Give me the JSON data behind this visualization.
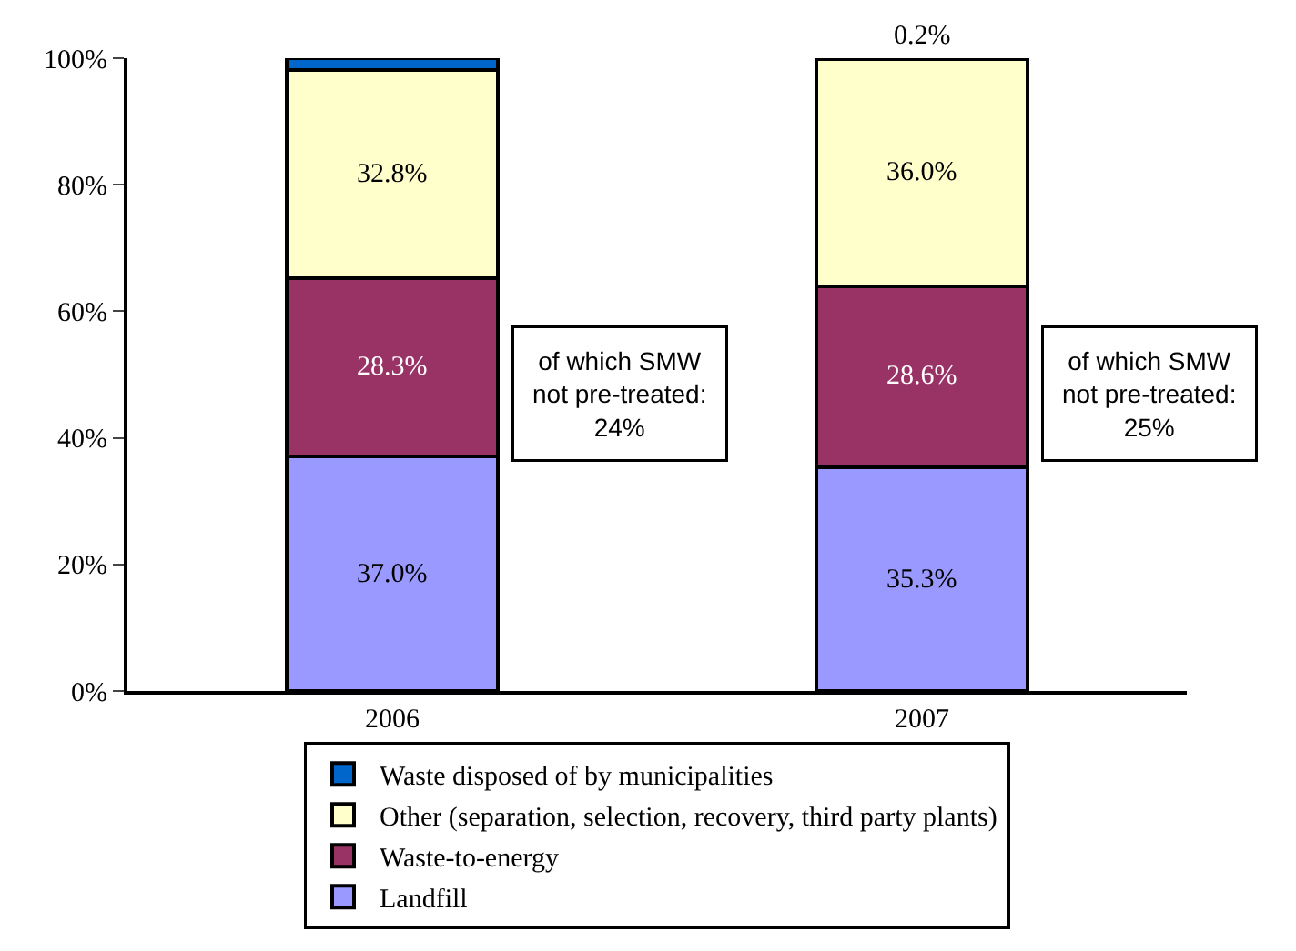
{
  "chart_data": {
    "type": "bar",
    "stacked": true,
    "categories": [
      "2006",
      "2007"
    ],
    "series": [
      {
        "name": "Landfill",
        "color": "#9999ff",
        "values": [
          37.0,
          35.3
        ],
        "value_labels": [
          "37.0%",
          "35.3%"
        ]
      },
      {
        "name": "Waste-to-energy",
        "color": "#993366",
        "values": [
          28.3,
          28.6
        ],
        "value_labels": [
          "28.3%",
          "28.6%"
        ]
      },
      {
        "name": "Other (separation, selection, recovery, third party plants)",
        "color": "#ffffcc",
        "values": [
          32.8,
          36.0
        ],
        "value_labels": [
          "32.8%",
          "36.0%"
        ]
      },
      {
        "name": "Waste disposed of by municipalities",
        "color": "#0066cc",
        "values": [
          1.9,
          0.2
        ],
        "value_labels": [
          null,
          "0.2%"
        ]
      }
    ],
    "ylim": [
      0,
      100
    ],
    "yticks": [
      {
        "value": 0,
        "label": "0%"
      },
      {
        "value": 20,
        "label": "20%"
      },
      {
        "value": 40,
        "label": "40%"
      },
      {
        "value": 60,
        "label": "60%"
      },
      {
        "value": 80,
        "label": "80%"
      },
      {
        "value": 100,
        "label": "100%"
      }
    ],
    "legend": "bottom",
    "annotations": [
      "of which SMW\nnot pre-treated:\n24%",
      "of which SMW\nnot pre-treated:\n25%"
    ]
  }
}
